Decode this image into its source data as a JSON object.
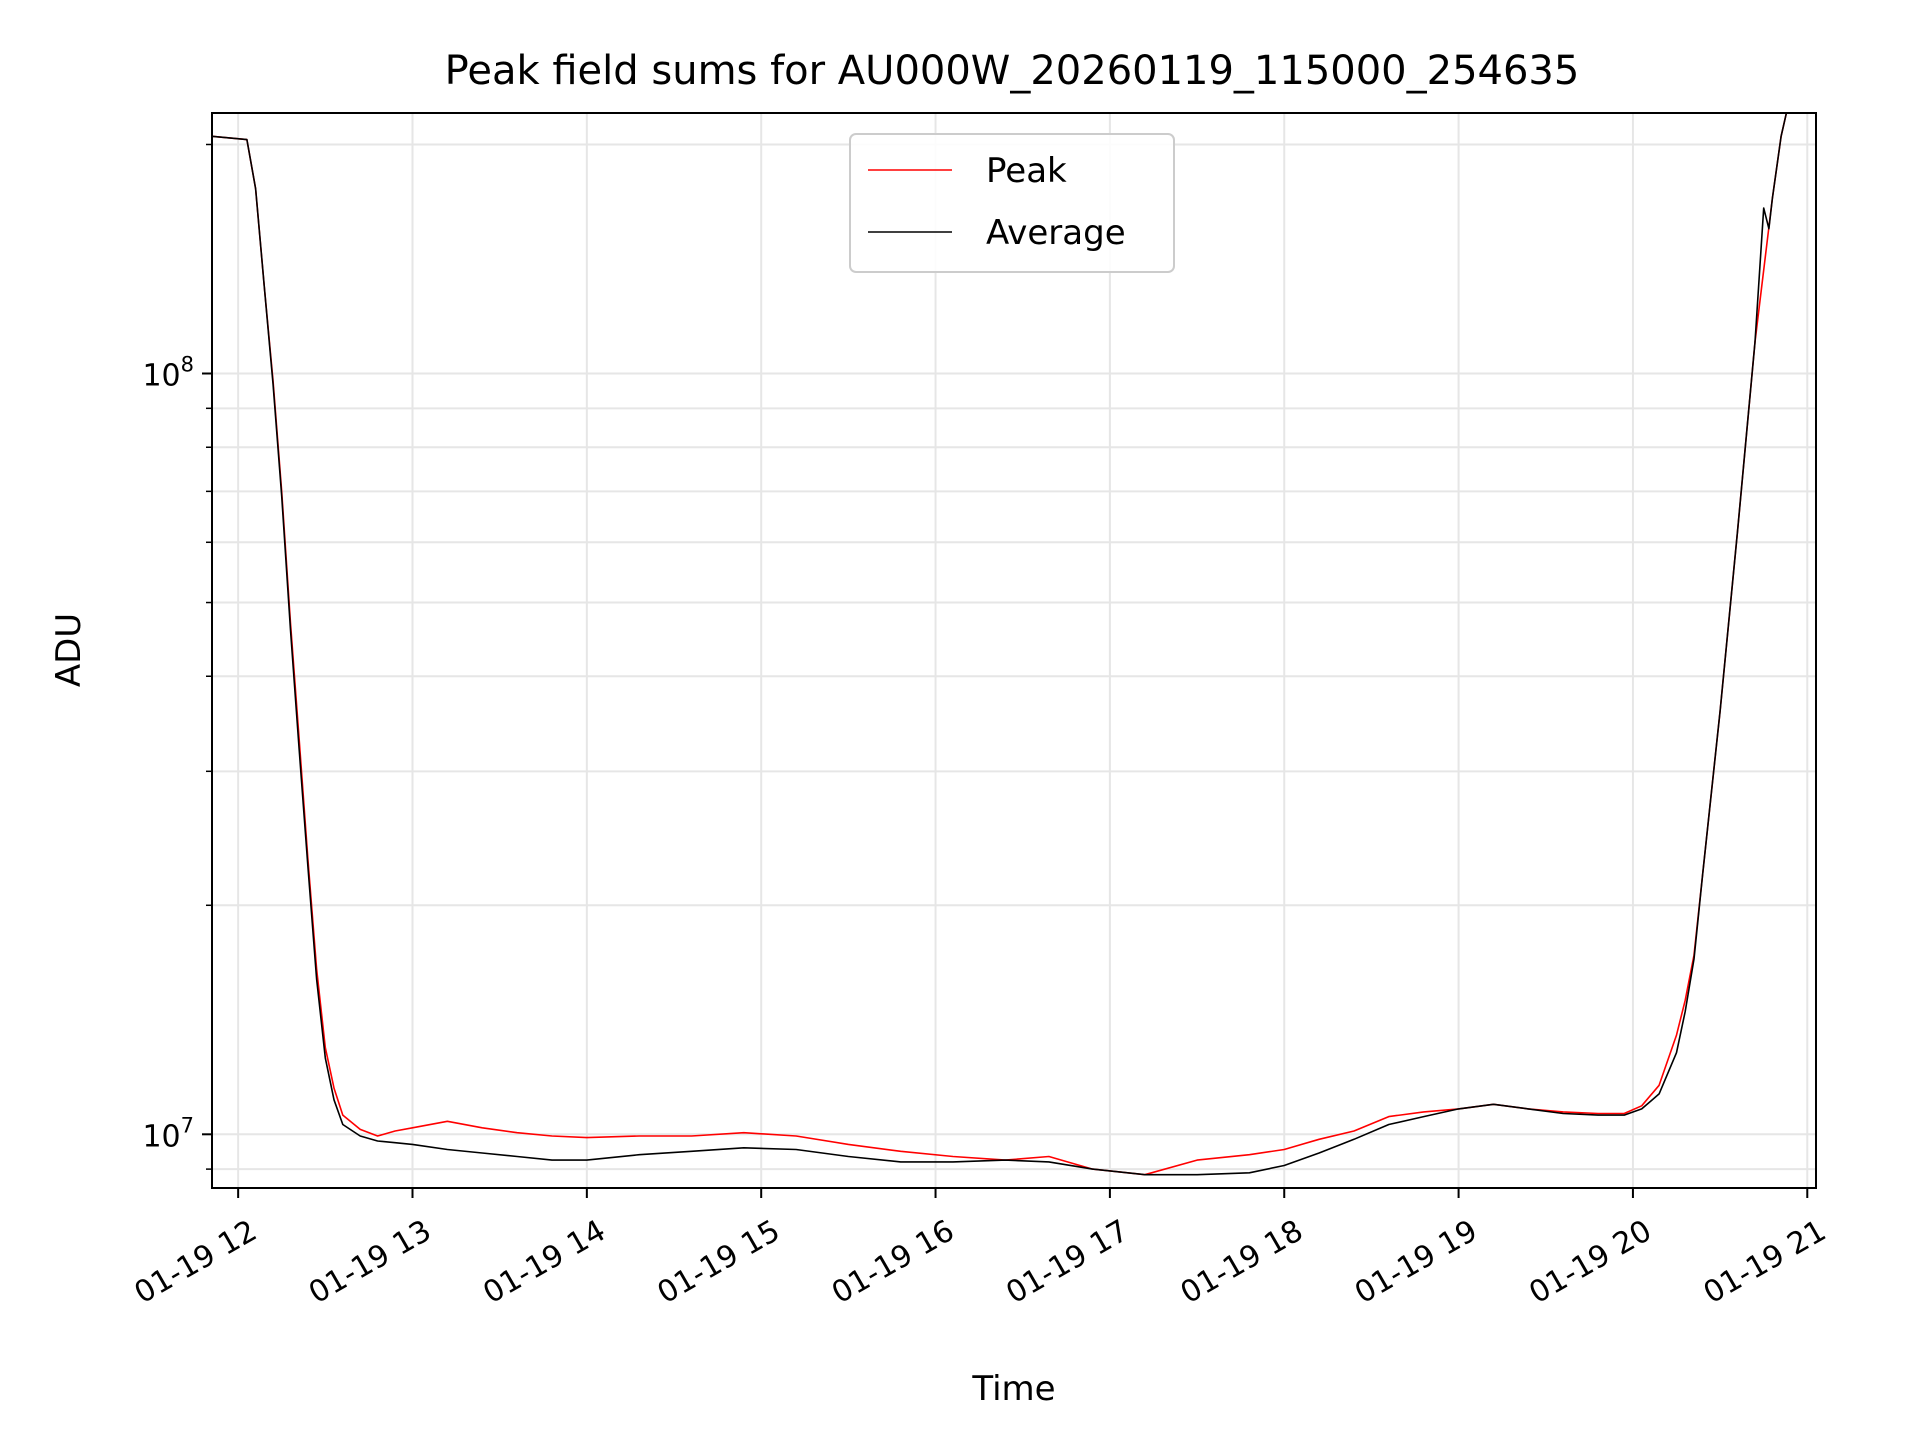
{
  "chart_data": {
    "type": "line",
    "title": "Peak field sums for AU000W_20260119_115000_254635",
    "xlabel": "Time",
    "ylabel": "ADU",
    "x_unit": "hours on 2026-01-19",
    "xlim": [
      11.85,
      21.05
    ],
    "ylim": [
      8500000,
      220000000
    ],
    "yscale": "log",
    "grid": true,
    "legend_position": "upper center",
    "x_tick_labels": [
      "01-19 12",
      "01-19 13",
      "01-19 14",
      "01-19 15",
      "01-19 16",
      "01-19 17",
      "01-19 18",
      "01-19 19",
      "01-19 20",
      "01-19 21"
    ],
    "x_tick_values": [
      12,
      13,
      14,
      15,
      16,
      17,
      18,
      19,
      20,
      21
    ],
    "y_tick_labels": [
      {
        "value": 10000000,
        "base": "10",
        "exp": "7"
      },
      {
        "value": 100000000,
        "base": "10",
        "exp": "8"
      }
    ],
    "series": [
      {
        "name": "Peak",
        "color": "#ff0000",
        "x": [
          11.85,
          12.05,
          12.1,
          12.15,
          12.2,
          12.25,
          12.3,
          12.35,
          12.4,
          12.45,
          12.5,
          12.55,
          12.6,
          12.7,
          12.8,
          12.9,
          13.0,
          13.2,
          13.4,
          13.6,
          13.8,
          14.0,
          14.3,
          14.6,
          14.9,
          15.2,
          15.5,
          15.8,
          16.1,
          16.4,
          16.65,
          16.9,
          17.2,
          17.5,
          17.8,
          18.0,
          18.2,
          18.4,
          18.6,
          18.8,
          19.0,
          19.2,
          19.4,
          19.6,
          19.8,
          19.95,
          20.05,
          20.15,
          20.25,
          20.3,
          20.35,
          20.4,
          20.5,
          20.6,
          20.7,
          20.8,
          20.85,
          20.88
        ],
        "values": [
          205000000,
          203000000,
          175000000,
          130000000,
          98000000,
          70000000,
          47000000,
          33000000,
          23000000,
          16500000,
          13000000,
          11500000,
          10600000,
          10150000,
          9950000,
          10100000,
          10200000,
          10400000,
          10200000,
          10050000,
          9950000,
          9900000,
          9950000,
          9950000,
          10050000,
          9950000,
          9700000,
          9500000,
          9350000,
          9250000,
          9350000,
          9000000,
          8850000,
          9250000,
          9400000,
          9550000,
          9850000,
          10100000,
          10550000,
          10700000,
          10800000,
          10950000,
          10800000,
          10700000,
          10650000,
          10650000,
          10900000,
          11600000,
          13500000,
          15000000,
          17200000,
          22000000,
          36000000,
          62000000,
          110000000,
          170000000,
          205000000,
          220000000
        ]
      },
      {
        "name": "Average",
        "color": "#000000",
        "x": [
          11.85,
          12.05,
          12.1,
          12.15,
          12.2,
          12.25,
          12.3,
          12.35,
          12.4,
          12.45,
          12.5,
          12.55,
          12.6,
          12.7,
          12.8,
          12.9,
          13.0,
          13.2,
          13.4,
          13.6,
          13.8,
          14.0,
          14.3,
          14.6,
          14.9,
          15.2,
          15.5,
          15.8,
          16.1,
          16.4,
          16.65,
          16.9,
          17.2,
          17.5,
          17.8,
          18.0,
          18.2,
          18.4,
          18.6,
          18.8,
          19.0,
          19.2,
          19.4,
          19.6,
          19.8,
          19.95,
          20.05,
          20.15,
          20.25,
          20.3,
          20.35,
          20.4,
          20.5,
          20.6,
          20.7,
          20.75,
          20.78,
          20.8,
          20.85,
          20.88
        ],
        "values": [
          205000000,
          203000000,
          175000000,
          130000000,
          97000000,
          69000000,
          46000000,
          32000000,
          22500000,
          16000000,
          12600000,
          11100000,
          10300000,
          9950000,
          9800000,
          9750000,
          9700000,
          9550000,
          9450000,
          9350000,
          9250000,
          9250000,
          9400000,
          9500000,
          9600000,
          9550000,
          9350000,
          9200000,
          9200000,
          9250000,
          9200000,
          9000000,
          8850000,
          8850000,
          8900000,
          9100000,
          9450000,
          9850000,
          10300000,
          10550000,
          10800000,
          10950000,
          10800000,
          10650000,
          10600000,
          10600000,
          10800000,
          11300000,
          12800000,
          14500000,
          17000000,
          22000000,
          36000000,
          62000000,
          110000000,
          165000000,
          155000000,
          170000000,
          205000000,
          220000000
        ]
      }
    ]
  }
}
